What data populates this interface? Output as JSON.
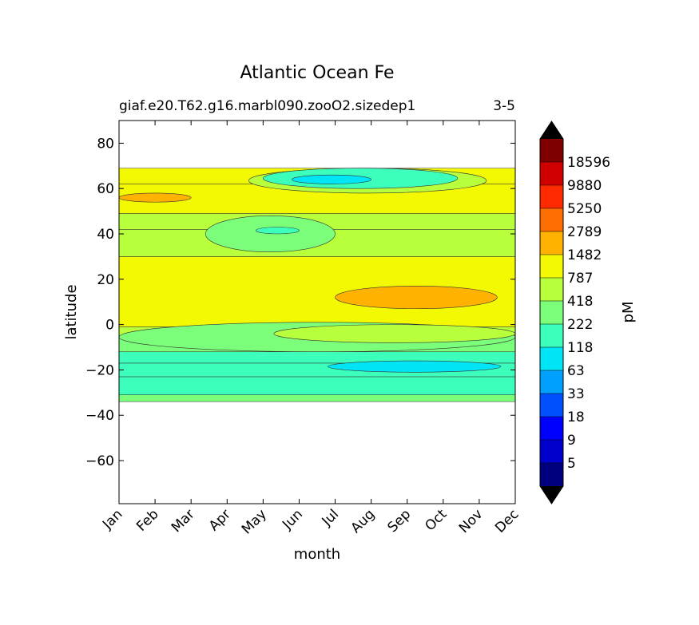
{
  "chart_data": {
    "type": "heatmap",
    "title": "Atlantic Ocean Fe",
    "subtitle_left": "giaf.e20.T62.g16.marbl090.zooO2.sizedep1",
    "subtitle_right": "3-5",
    "xlabel": "month",
    "ylabel": "latitude",
    "x_ticks": [
      "Jan",
      "Feb",
      "Mar",
      "Apr",
      "May",
      "Jun",
      "Jul",
      "Aug",
      "Sep",
      "Oct",
      "Nov",
      "Dec"
    ],
    "ylim": [
      -79,
      90
    ],
    "y_ticks": [
      -60,
      -40,
      -20,
      0,
      20,
      40,
      60,
      80
    ],
    "y_tick_labels": [
      "−60",
      "−40",
      "−20",
      "0",
      "20",
      "40",
      "60",
      "80"
    ],
    "data_lat_range": [
      -34,
      69
    ],
    "colorbar": {
      "label": "pM",
      "levels": [
        "5",
        "9",
        "18",
        "33",
        "63",
        "118",
        "222",
        "418",
        "787",
        "1482",
        "2789",
        "5250",
        "9880",
        "18596"
      ],
      "colors": [
        "#00007f",
        "#0000cd",
        "#0000ff",
        "#0050ff",
        "#00a0ff",
        "#00e5f6",
        "#3bffbb",
        "#7bff7b",
        "#b8ff3c",
        "#f3f900",
        "#ffb300",
        "#ff6e00",
        "#ff2a00",
        "#d00000",
        "#7f0000"
      ],
      "extend": "both",
      "over_color": "#000000",
      "under_color": "#000000"
    },
    "bands": [
      {
        "lat_from": -34,
        "lat_to": -31,
        "level_index": 7
      },
      {
        "lat_from": -31,
        "lat_to": -23,
        "level_index": 6
      },
      {
        "lat_from": -23,
        "lat_to": -17,
        "level_index": 6
      },
      {
        "lat_from": -17,
        "lat_to": -12,
        "level_index": 6
      },
      {
        "lat_from": -12,
        "lat_to": -5,
        "level_index": 7
      },
      {
        "lat_from": -5,
        "lat_to": -1,
        "level_index": 8
      },
      {
        "lat_from": -1,
        "lat_to": 30,
        "level_index": 9
      },
      {
        "lat_from": 30,
        "lat_to": 42,
        "level_index": 8
      },
      {
        "lat_from": 42,
        "lat_to": 49,
        "level_index": 8
      },
      {
        "lat_from": 49,
        "lat_to": 62,
        "level_index": 9
      },
      {
        "lat_from": 62,
        "lat_to": 69,
        "level_index": 9
      }
    ],
    "patches": [
      {
        "month_from": 6.0,
        "month_to": 10.5,
        "lat_from": 7,
        "lat_to": 17,
        "level_index": 10
      },
      {
        "month_from": 0.0,
        "month_to": 2.0,
        "lat_from": 54,
        "lat_to": 58,
        "level_index": 10
      },
      {
        "month_from": 2.4,
        "month_to": 6.0,
        "lat_from": 32,
        "lat_to": 48,
        "level_index": 7
      },
      {
        "month_from": 3.8,
        "month_to": 5.0,
        "lat_from": 40,
        "lat_to": 43,
        "level_index": 6
      },
      {
        "month_from": 3.6,
        "month_to": 10.2,
        "lat_from": 58,
        "lat_to": 69,
        "level_index": 8
      },
      {
        "month_from": 4.0,
        "month_to": 9.4,
        "lat_from": 60,
        "lat_to": 69,
        "level_index": 6
      },
      {
        "month_from": 4.8,
        "month_to": 7.0,
        "lat_from": 62,
        "lat_to": 66,
        "level_index": 5
      },
      {
        "month_from": 5.8,
        "month_to": 10.6,
        "lat_from": -21,
        "lat_to": -16,
        "level_index": 5
      },
      {
        "month_from": 0.0,
        "month_to": 11.0,
        "lat_from": -12,
        "lat_to": 1,
        "level_index": 7
      },
      {
        "month_from": 4.3,
        "month_to": 11.0,
        "lat_from": -8,
        "lat_to": 0,
        "level_index": 8
      }
    ]
  }
}
